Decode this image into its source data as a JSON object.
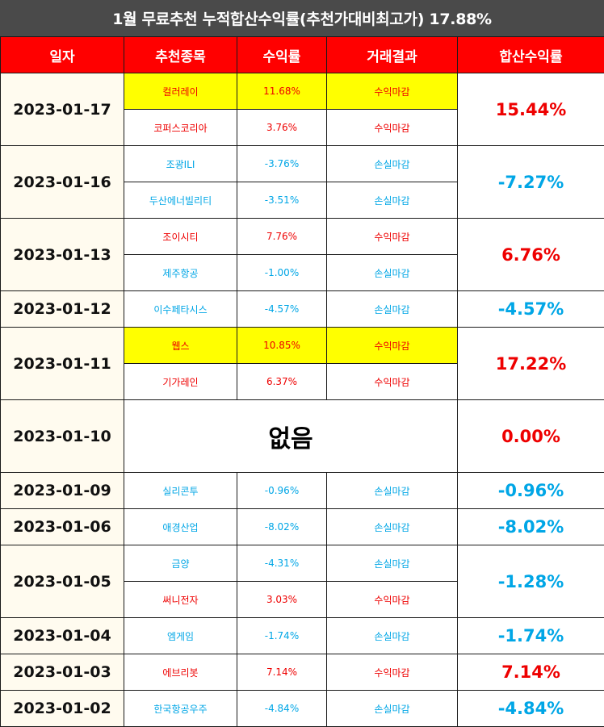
{
  "title": "1월 무료추천 누적합산수익률(추천가대비최고가) 17.88%",
  "headers": {
    "date": "일자",
    "stock": "추천종목",
    "rate": "수익률",
    "result": "거래결과",
    "total": "합산수익률"
  },
  "colors": {
    "header_bg": "#ff0000",
    "positive": "#ee0000",
    "negative": "#00a6e6",
    "highlight": "#ffff00",
    "date_bg": "#fffbef"
  },
  "groups": [
    {
      "date": "2023-01-17",
      "total": "15.44%",
      "total_sign": "pos",
      "rows": [
        {
          "stock": "컬러레이",
          "rate": "11.68%",
          "result": "수익마감",
          "sign": "pos",
          "highlight": true
        },
        {
          "stock": "코퍼스코리아",
          "rate": "3.76%",
          "result": "수익마감",
          "sign": "pos",
          "highlight": false
        }
      ]
    },
    {
      "date": "2023-01-16",
      "total": "-7.27%",
      "total_sign": "neg",
      "rows": [
        {
          "stock": "조광ILI",
          "rate": "-3.76%",
          "result": "손실마감",
          "sign": "neg",
          "highlight": false
        },
        {
          "stock": "두산에너빌리티",
          "rate": "-3.51%",
          "result": "손실마감",
          "sign": "neg",
          "highlight": false
        }
      ]
    },
    {
      "date": "2023-01-13",
      "total": "6.76%",
      "total_sign": "pos",
      "rows": [
        {
          "stock": "조이시티",
          "rate": "7.76%",
          "result": "수익마감",
          "sign": "pos",
          "highlight": false
        },
        {
          "stock": "제주항공",
          "rate": "-1.00%",
          "result": "손실마감",
          "sign": "neg",
          "highlight": false
        }
      ]
    },
    {
      "date": "2023-01-12",
      "total": "-4.57%",
      "total_sign": "neg",
      "rows": [
        {
          "stock": "이수페타시스",
          "rate": "-4.57%",
          "result": "손실마감",
          "sign": "neg",
          "highlight": false
        }
      ]
    },
    {
      "date": "2023-01-11",
      "total": "17.22%",
      "total_sign": "pos",
      "rows": [
        {
          "stock": "웹스",
          "rate": "10.85%",
          "result": "수익마감",
          "sign": "pos",
          "highlight": true
        },
        {
          "stock": "기가레인",
          "rate": "6.37%",
          "result": "수익마감",
          "sign": "pos",
          "highlight": false
        }
      ]
    },
    {
      "date": "2023-01-10",
      "total": "0.00%",
      "total_sign": "zero",
      "none_text": "없음",
      "rows": []
    },
    {
      "date": "2023-01-09",
      "total": "-0.96%",
      "total_sign": "neg",
      "rows": [
        {
          "stock": "실리콘투",
          "rate": "-0.96%",
          "result": "손실마감",
          "sign": "neg",
          "highlight": false
        }
      ]
    },
    {
      "date": "2023-01-06",
      "total": "-8.02%",
      "total_sign": "neg",
      "rows": [
        {
          "stock": "애경산업",
          "rate": "-8.02%",
          "result": "손실마감",
          "sign": "neg",
          "highlight": false
        }
      ]
    },
    {
      "date": "2023-01-05",
      "total": "-1.28%",
      "total_sign": "neg",
      "rows": [
        {
          "stock": "금양",
          "rate": "-4.31%",
          "result": "손실마감",
          "sign": "neg",
          "highlight": false
        },
        {
          "stock": "써니전자",
          "rate": "3.03%",
          "result": "수익마감",
          "sign": "pos",
          "highlight": false
        }
      ]
    },
    {
      "date": "2023-01-04",
      "total": "-1.74%",
      "total_sign": "neg",
      "rows": [
        {
          "stock": "엠게임",
          "rate": "-1.74%",
          "result": "손실마감",
          "sign": "neg",
          "highlight": false
        }
      ]
    },
    {
      "date": "2023-01-03",
      "total": "7.14%",
      "total_sign": "pos",
      "rows": [
        {
          "stock": "에브리봇",
          "rate": "7.14%",
          "result": "수익마감",
          "sign": "pos",
          "highlight": false
        }
      ]
    },
    {
      "date": "2023-01-02",
      "total": "-4.84%",
      "total_sign": "neg",
      "rows": [
        {
          "stock": "한국항공우주",
          "rate": "-4.84%",
          "result": "손실마감",
          "sign": "neg",
          "highlight": false
        }
      ]
    }
  ]
}
